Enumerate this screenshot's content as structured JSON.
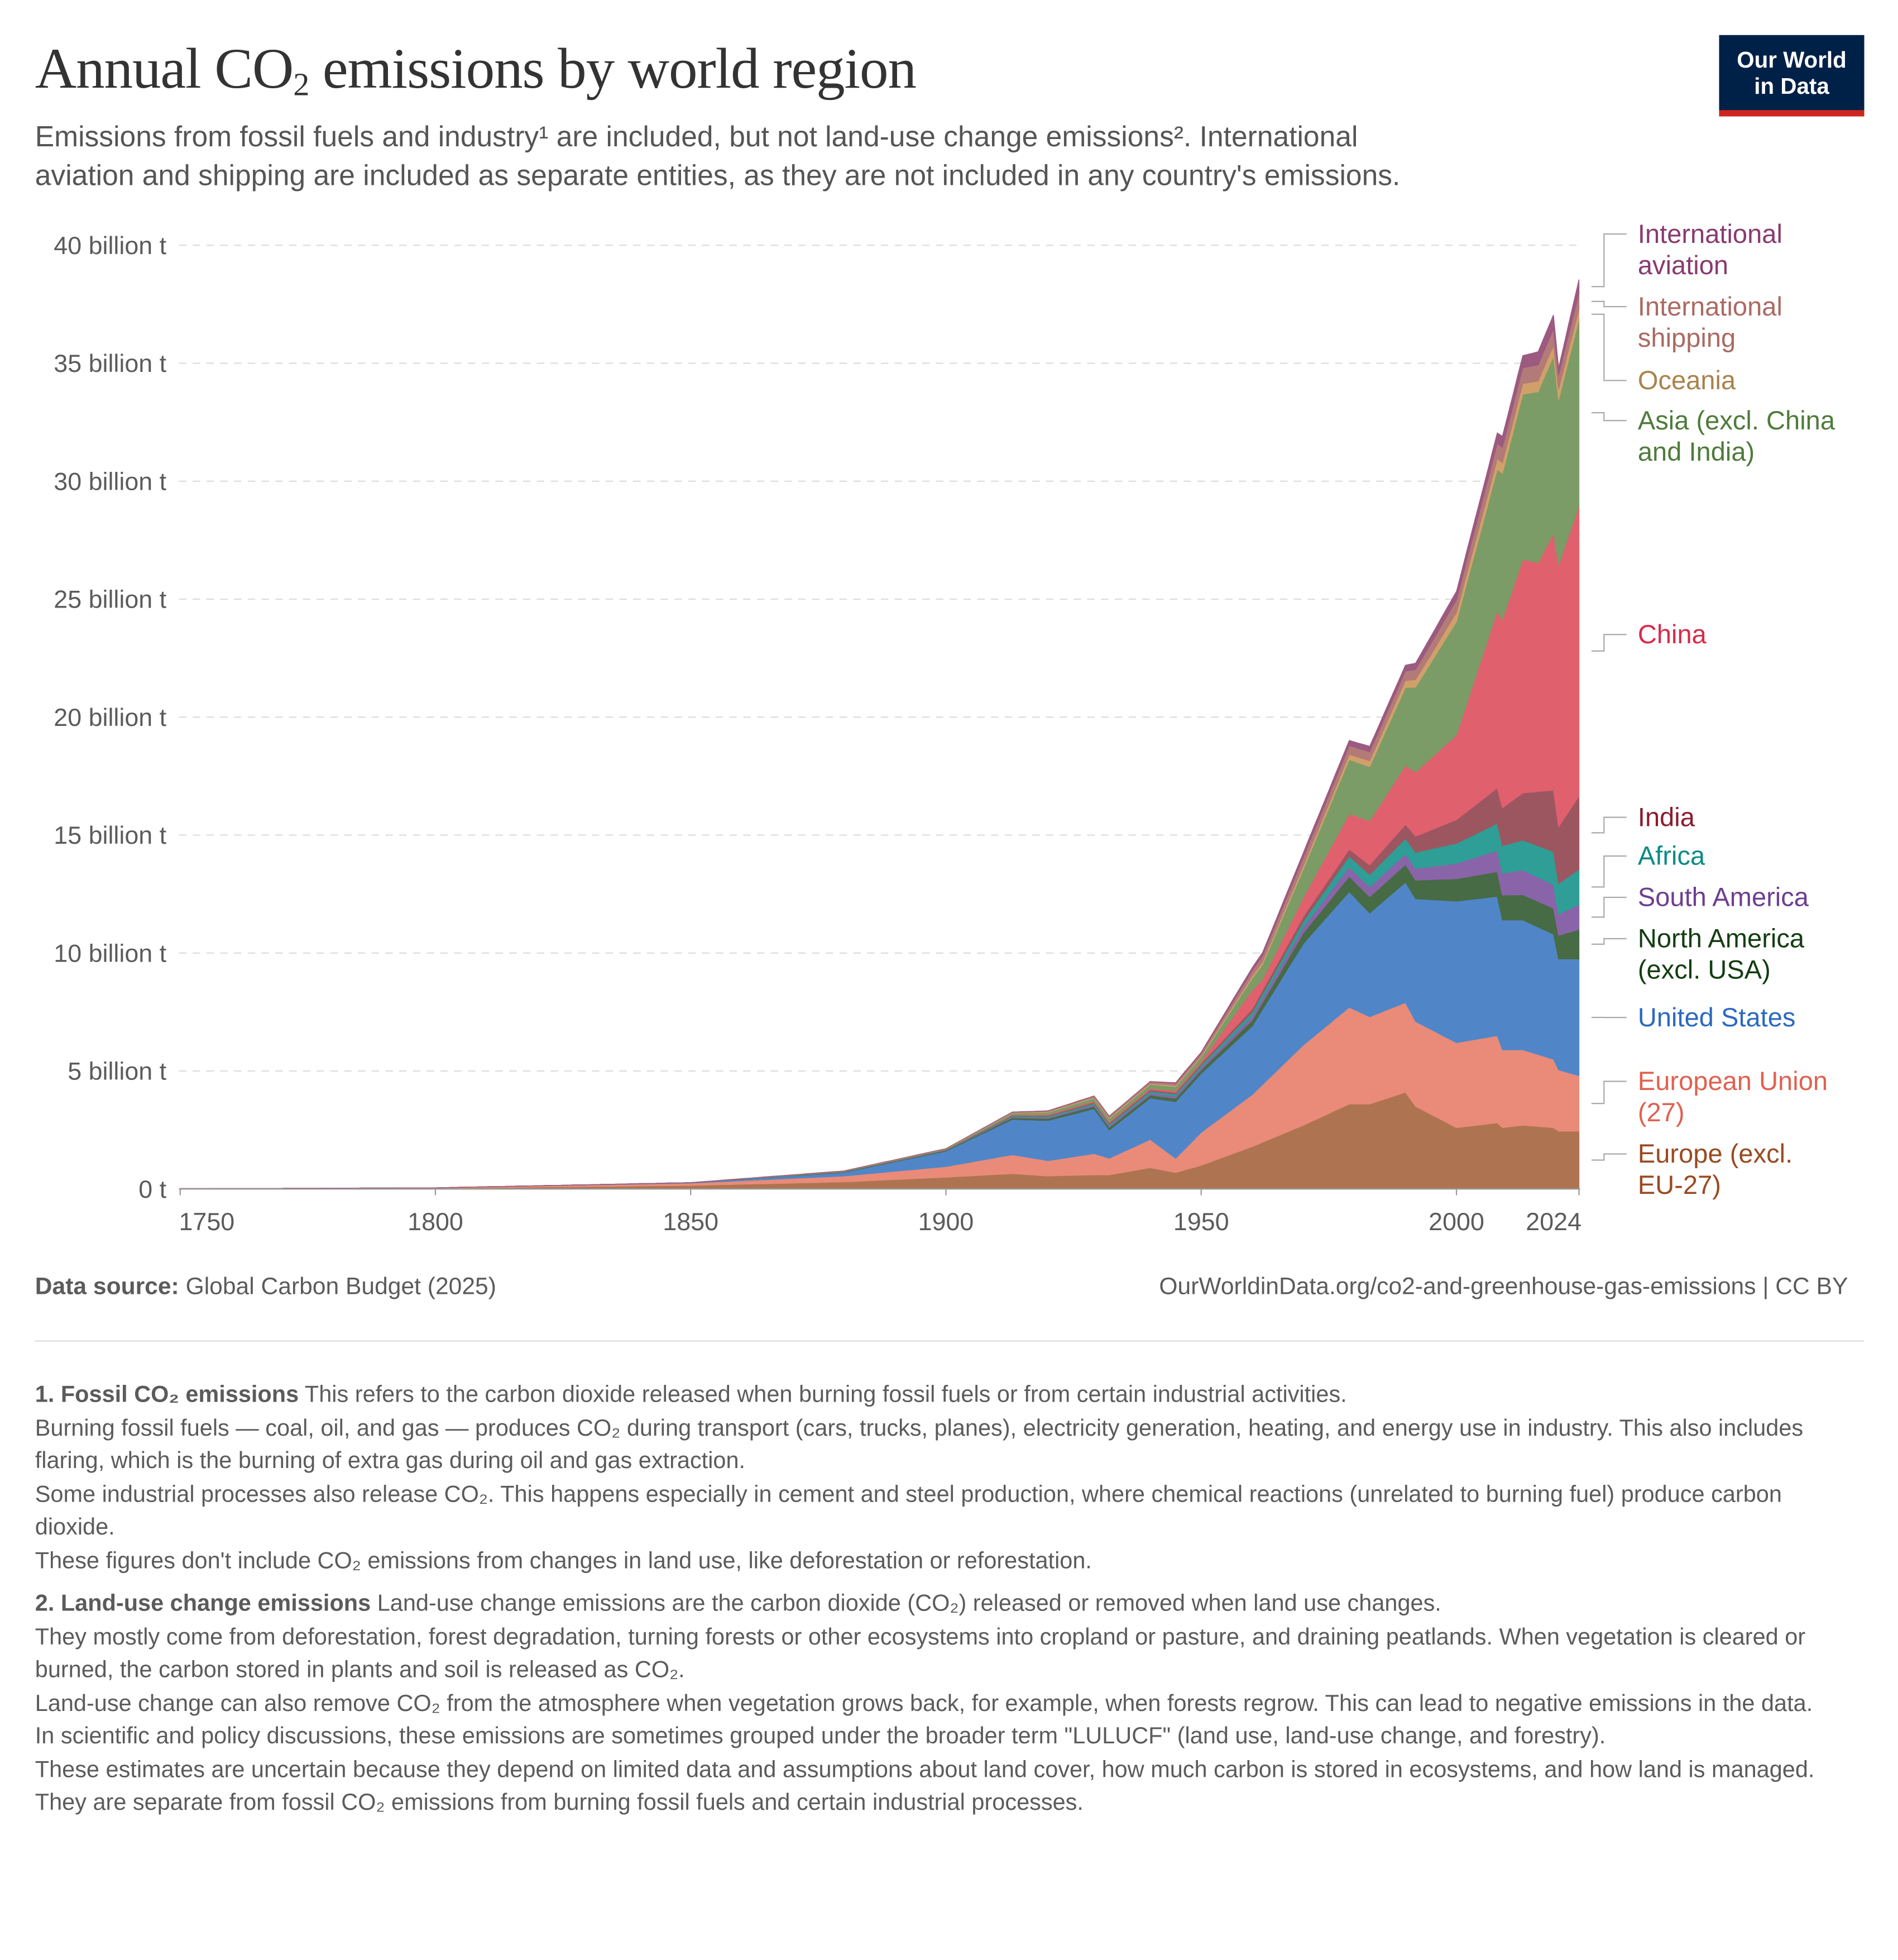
{
  "header": {
    "title_pre": "Annual CO",
    "title_sub": "2",
    "title_post": " emissions by world region",
    "subtitle_line1": "Emissions from fossil fuels and industry¹ are included, but not land-use change emissions². International",
    "subtitle_line2": "aviation and shipping are included as separate entities, as they are not included in any country's emissions.",
    "logo_line1": "Our World",
    "logo_line2": "in Data"
  },
  "chart_data": {
    "type": "area",
    "stacked": true,
    "title": "Annual CO₂ emissions by world region",
    "xlabel": "",
    "ylabel": "",
    "xlim": [
      1750,
      2024
    ],
    "ylim": [
      0,
      40
    ],
    "unit": "billion t",
    "x_ticks": [
      {
        "value": 1750,
        "label": "1750"
      },
      {
        "value": 1800,
        "label": "1800"
      },
      {
        "value": 1850,
        "label": "1850"
      },
      {
        "value": 1900,
        "label": "1900"
      },
      {
        "value": 1950,
        "label": "1950"
      },
      {
        "value": 2000,
        "label": "2000"
      },
      {
        "value": 2024,
        "label": "2024"
      }
    ],
    "y_ticks": [
      {
        "value": 0,
        "label": "0 t"
      },
      {
        "value": 5,
        "label": "5 billion t"
      },
      {
        "value": 10,
        "label": "10 billion t"
      },
      {
        "value": 15,
        "label": "15 billion t"
      },
      {
        "value": 20,
        "label": "20 billion t"
      },
      {
        "value": 25,
        "label": "25 billion t"
      },
      {
        "value": 30,
        "label": "30 billion t"
      },
      {
        "value": 35,
        "label": "35 billion t"
      },
      {
        "value": 40,
        "label": "40 billion t"
      }
    ],
    "grid": true,
    "legend": "right, inline labels",
    "series": [
      {
        "name": "Europe (excl. EU-27)",
        "label_lines": [
          "Europe (excl.",
          "EU-27)"
        ],
        "color": "#ae7451",
        "label_color": "#9a4a20",
        "points": [
          [
            1750,
            0.01
          ],
          [
            1800,
            0.03
          ],
          [
            1850,
            0.15
          ],
          [
            1880,
            0.3
          ],
          [
            1900,
            0.5
          ],
          [
            1913,
            0.65
          ],
          [
            1920,
            0.55
          ],
          [
            1929,
            0.6
          ],
          [
            1932,
            0.6
          ],
          [
            1940,
            0.9
          ],
          [
            1945,
            0.7
          ],
          [
            1950,
            1.0
          ],
          [
            1960,
            1.8
          ],
          [
            1970,
            2.7
          ],
          [
            1979,
            3.6
          ],
          [
            1983,
            3.6
          ],
          [
            1990,
            4.1
          ],
          [
            1992,
            3.5
          ],
          [
            2000,
            2.6
          ],
          [
            2008,
            2.8
          ],
          [
            2009,
            2.6
          ],
          [
            2013,
            2.7
          ],
          [
            2019,
            2.6
          ],
          [
            2020,
            2.45
          ],
          [
            2024,
            2.45
          ]
        ]
      },
      {
        "name": "European Union (27)",
        "label_lines": [
          "European Union",
          "(27)"
        ],
        "color": "#e98b78",
        "label_color": "#e06150",
        "points": [
          [
            1750,
            0.005
          ],
          [
            1800,
            0.02
          ],
          [
            1850,
            0.1
          ],
          [
            1880,
            0.25
          ],
          [
            1900,
            0.45
          ],
          [
            1913,
            0.8
          ],
          [
            1920,
            0.65
          ],
          [
            1929,
            0.9
          ],
          [
            1932,
            0.7
          ],
          [
            1940,
            1.2
          ],
          [
            1945,
            0.6
          ],
          [
            1950,
            1.4
          ],
          [
            1960,
            2.2
          ],
          [
            1970,
            3.4
          ],
          [
            1979,
            4.1
          ],
          [
            1983,
            3.7
          ],
          [
            1990,
            3.8
          ],
          [
            1992,
            3.6
          ],
          [
            2000,
            3.6
          ],
          [
            2008,
            3.7
          ],
          [
            2009,
            3.3
          ],
          [
            2013,
            3.2
          ],
          [
            2019,
            2.9
          ],
          [
            2020,
            2.6
          ],
          [
            2024,
            2.35
          ]
        ]
      },
      {
        "name": "United States",
        "label_lines": [
          "United States"
        ],
        "color": "#5086c8",
        "label_color": "#2c69c0",
        "points": [
          [
            1800,
            0.0
          ],
          [
            1850,
            0.02
          ],
          [
            1880,
            0.15
          ],
          [
            1900,
            0.65
          ],
          [
            1913,
            1.5
          ],
          [
            1920,
            1.7
          ],
          [
            1929,
            1.9
          ],
          [
            1932,
            1.2
          ],
          [
            1940,
            1.75
          ],
          [
            1945,
            2.4
          ],
          [
            1950,
            2.5
          ],
          [
            1960,
            2.9
          ],
          [
            1970,
            4.3
          ],
          [
            1979,
            4.9
          ],
          [
            1983,
            4.4
          ],
          [
            1990,
            5.1
          ],
          [
            1992,
            5.2
          ],
          [
            2000,
            6.0
          ],
          [
            2008,
            5.9
          ],
          [
            2009,
            5.5
          ],
          [
            2013,
            5.5
          ],
          [
            2019,
            5.3
          ],
          [
            2020,
            4.7
          ],
          [
            2024,
            4.95
          ]
        ]
      },
      {
        "name": "North America (excl. USA)",
        "label_lines": [
          "North America",
          "(excl. USA)"
        ],
        "color": "#476b44",
        "label_color": "#143d12",
        "points": [
          [
            1850,
            0.0
          ],
          [
            1900,
            0.03
          ],
          [
            1913,
            0.07
          ],
          [
            1950,
            0.15
          ],
          [
            1960,
            0.25
          ],
          [
            1970,
            0.45
          ],
          [
            1979,
            0.65
          ],
          [
            1990,
            0.75
          ],
          [
            2000,
            0.95
          ],
          [
            2008,
            1.05
          ],
          [
            2019,
            1.1
          ],
          [
            2020,
            1.0
          ],
          [
            2024,
            1.25
          ]
        ]
      },
      {
        "name": "South America",
        "label_lines": [
          "South America"
        ],
        "color": "#8a64a8",
        "label_color": "#6d3e91",
        "points": [
          [
            1850,
            0.0
          ],
          [
            1900,
            0.01
          ],
          [
            1950,
            0.1
          ],
          [
            1970,
            0.25
          ],
          [
            1979,
            0.4
          ],
          [
            1990,
            0.45
          ],
          [
            2000,
            0.65
          ],
          [
            2013,
            1.05
          ],
          [
            2019,
            1.0
          ],
          [
            2020,
            0.9
          ],
          [
            2024,
            1.05
          ]
        ]
      },
      {
        "name": "Africa",
        "label_lines": [
          "Africa"
        ],
        "color": "#2e9e96",
        "label_color": "#0b8a86",
        "points": [
          [
            1850,
            0.0
          ],
          [
            1900,
            0.01
          ],
          [
            1950,
            0.1
          ],
          [
            1970,
            0.25
          ],
          [
            1979,
            0.45
          ],
          [
            1990,
            0.65
          ],
          [
            2000,
            0.85
          ],
          [
            2008,
            1.15
          ],
          [
            2019,
            1.4
          ],
          [
            2020,
            1.3
          ],
          [
            2024,
            1.5
          ]
        ]
      },
      {
        "name": "India",
        "label_lines": [
          "India"
        ],
        "color": "#9c5660",
        "label_color": "#8b1c2c",
        "points": [
          [
            1850,
            0.0
          ],
          [
            1900,
            0.02
          ],
          [
            1950,
            0.07
          ],
          [
            1970,
            0.2
          ],
          [
            1979,
            0.3
          ],
          [
            1990,
            0.6
          ],
          [
            2000,
            1.0
          ],
          [
            2008,
            1.5
          ],
          [
            2013,
            2.0
          ],
          [
            2019,
            2.6
          ],
          [
            2020,
            2.4
          ],
          [
            2024,
            3.1
          ]
        ]
      },
      {
        "name": "China",
        "label_lines": [
          "China"
        ],
        "color": "#e0606e",
        "label_color": "#d62b4a",
        "points": [
          [
            1900,
            0.0
          ],
          [
            1950,
            0.08
          ],
          [
            1960,
            0.8
          ],
          [
            1962,
            0.45
          ],
          [
            1970,
            0.8
          ],
          [
            1979,
            1.5
          ],
          [
            1990,
            2.5
          ],
          [
            2000,
            3.6
          ],
          [
            2008,
            7.5
          ],
          [
            2013,
            9.9
          ],
          [
            2016,
            9.7
          ],
          [
            2019,
            10.9
          ],
          [
            2020,
            11.1
          ],
          [
            2024,
            12.3
          ]
        ]
      },
      {
        "name": "Asia (excl. China and India)",
        "label_lines": [
          "Asia (excl. China",
          "and India)"
        ],
        "color": "#7b9c66",
        "label_color": "#4e7b3a",
        "points": [
          [
            1850,
            0.0
          ],
          [
            1900,
            0.03
          ],
          [
            1950,
            0.2
          ],
          [
            1960,
            0.5
          ],
          [
            1970,
            1.2
          ],
          [
            1979,
            2.3
          ],
          [
            1983,
            2.3
          ],
          [
            1990,
            3.3
          ],
          [
            2000,
            4.8
          ],
          [
            2008,
            6.0
          ],
          [
            2013,
            7.0
          ],
          [
            2019,
            7.5
          ],
          [
            2020,
            7.0
          ],
          [
            2024,
            7.9
          ]
        ]
      },
      {
        "name": "Oceania",
        "label_lines": [
          "Oceania"
        ],
        "color": "#d1a06a",
        "label_color": "#a7834c",
        "points": [
          [
            1850,
            0.0
          ],
          [
            1900,
            0.01
          ],
          [
            1950,
            0.05
          ],
          [
            1970,
            0.15
          ],
          [
            1990,
            0.3
          ],
          [
            2008,
            0.45
          ],
          [
            2024,
            0.45
          ]
        ]
      },
      {
        "name": "International shipping",
        "label_lines": [
          "International",
          "shipping"
        ],
        "color": "#b27b77",
        "label_color": "#ab6a62",
        "points": [
          [
            1900,
            0.0
          ],
          [
            1950,
            0.1
          ],
          [
            1970,
            0.35
          ],
          [
            1990,
            0.4
          ],
          [
            2008,
            0.65
          ],
          [
            2019,
            0.7
          ],
          [
            2020,
            0.6
          ],
          [
            2024,
            0.65
          ]
        ]
      },
      {
        "name": "International aviation",
        "label_lines": [
          "International",
          "aviation"
        ],
        "color": "#9c5a80",
        "label_color": "#883b6f",
        "points": [
          [
            1940,
            0.0
          ],
          [
            1950,
            0.05
          ],
          [
            1970,
            0.2
          ],
          [
            1990,
            0.25
          ],
          [
            2008,
            0.45
          ],
          [
            2019,
            0.6
          ],
          [
            2020,
            0.3
          ],
          [
            2024,
            0.6
          ]
        ]
      }
    ]
  },
  "footer": {
    "source_label": "Data source:",
    "source_value": " Global Carbon Budget (2025)",
    "url": "OurWorldinData.org/co2-and-greenhouse-gas-emissions | CC BY"
  },
  "notes": [
    {
      "title": "1. Fossil CO₂ emissions",
      "lead": " This refers to the carbon dioxide released when burning fossil fuels or from certain industrial activities.",
      "lines": [
        "Burning fossil fuels — coal, oil, and gas — produces CO₂ during transport (cars, trucks, planes), electricity generation, heating, and energy use in industry. This also includes flaring, which is the burning of extra gas during oil and gas extraction.",
        "Some industrial processes also release CO₂. This happens especially in cement and steel production, where chemical reactions (unrelated to burning fuel) produce carbon dioxide.",
        "These figures don't include CO₂ emissions from changes in land use, like deforestation or reforestation."
      ]
    },
    {
      "title": "2. Land-use change emissions",
      "lead": " Land-use change emissions are the carbon dioxide (CO₂) released or removed when land use changes.",
      "lines": [
        "They mostly come from deforestation, forest degradation, turning forests or other ecosystems into cropland or pasture, and draining peatlands. When vegetation is cleared or burned, the carbon stored in plants and soil is released as CO₂.",
        "Land-use change can also remove CO₂ from the atmosphere when vegetation grows back, for example, when forests regrow. This can lead to negative emissions in the data.",
        "In scientific and policy discussions, these emissions are sometimes grouped under the broader term \"LULUCF\" (land use, land-use change, and forestry).",
        "These estimates are uncertain because they depend on limited data and assumptions about land cover, how much carbon is stored in ecosystems, and how land is managed.",
        "They are separate from fossil CO₂ emissions from burning fossil fuels and certain industrial processes."
      ]
    }
  ]
}
